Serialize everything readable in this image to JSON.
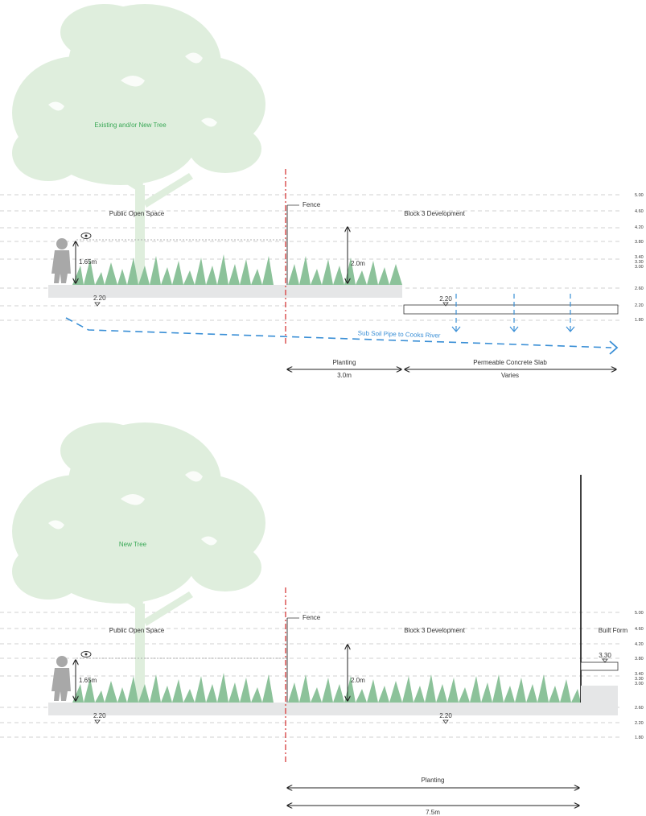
{
  "colors": {
    "tree": "#dfeedd",
    "grass": "#8cc29a",
    "grass_dark": "#6aa87c",
    "ground": "#e5e6e7",
    "fence": "#d63a3a",
    "water": "#3a8fd6",
    "tree_label": "#3aa856",
    "level_line": "#b8b8b8",
    "person": "#a8a8a8"
  },
  "section_1": {
    "tree_label": "Existing and/or New Tree",
    "public_open_space": "Public Open Space",
    "fence_label": "Fence",
    "block_label": "Block 3 Development",
    "eye_height": "1.65m",
    "fence_height": "2.0m",
    "ground_level": "2.20",
    "slab_level": "2.20",
    "pipe_label": "Sub Soil Pipe to Cooks River",
    "dims": [
      {
        "label": "Planting",
        "value": "3.0m"
      },
      {
        "label": "Permeable Concrete Slab",
        "value": "Varies"
      }
    ],
    "levels": [
      "5.00",
      "4.60",
      "4.20",
      "3.80",
      "3.40",
      "3.30",
      "3.00",
      "2.60",
      "2.20",
      "1.80"
    ]
  },
  "section_2": {
    "tree_label": "New Tree",
    "public_open_space": "Public Open Space",
    "fence_label": "Fence",
    "block_label": "Block 3 Development",
    "built_form_label": "Built Form",
    "eye_height": "1.65m",
    "fence_height": "2.0m",
    "ground_level": "2.20",
    "mid_level": "2.20",
    "built_form_level": "3.30",
    "dims": [
      {
        "label": "Planting",
        "value": "7.5m"
      }
    ],
    "levels": [
      "5.00",
      "4.60",
      "4.20",
      "3.80",
      "3.40",
      "3.30",
      "3.00",
      "2.60",
      "2.20",
      "1.80"
    ]
  }
}
